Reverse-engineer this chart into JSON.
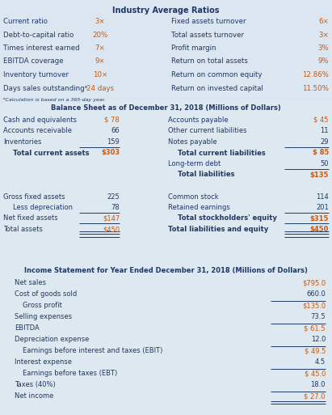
{
  "bg_color": "#dce6f1",
  "bs_bg": "#e8f0f7",
  "is_bg": "#e8f0f7",
  "text_color": "#1f3864",
  "value_color": "#c55a11",
  "fig_width": 4.11,
  "fig_height": 5.13,
  "ratios_title": "Industry Average Ratios",
  "ratios": [
    [
      "Current ratio",
      "3×",
      "Fixed assets turnover",
      "6×"
    ],
    [
      "Debt-to-capital ratio",
      "20%",
      "Total assets turnover",
      "3×"
    ],
    [
      "Times interest earned",
      "7×",
      "Profit margin",
      "3%"
    ],
    [
      "EBITDA coverage",
      "9×",
      "Return on total assets",
      "9%"
    ],
    [
      "Inventory turnover",
      "10×",
      "Return on common equity",
      "12.86%"
    ],
    [
      "Days sales outstandingᵃ",
      "24 days",
      "Return on invested capital",
      "11.50%"
    ]
  ],
  "ratios_footnote": "ᵃCalculation is based on a 365-day year.",
  "bs_title": "Balance Sheet as of December 31, 2018 (Millions of Dollars)",
  "bs_left": [
    {
      "label": "Cash and equivalents",
      "val": "$ 78",
      "underline": false,
      "bold": false,
      "indent": false
    },
    {
      "label": "Accounts receivable",
      "val": "66",
      "underline": false,
      "bold": false,
      "indent": false
    },
    {
      "label": "Inventories",
      "val": "159",
      "underline": true,
      "bold": false,
      "indent": false
    },
    {
      "label": "Total current assets",
      "val": "$303",
      "underline": false,
      "bold": true,
      "indent": true
    },
    {
      "label": "",
      "val": "",
      "underline": false,
      "bold": false,
      "indent": false
    },
    {
      "label": "",
      "val": "",
      "underline": false,
      "bold": false,
      "indent": false
    },
    {
      "label": "",
      "val": "",
      "underline": false,
      "bold": false,
      "indent": false
    },
    {
      "label": "Gross fixed assets",
      "val": "225",
      "underline": false,
      "bold": false,
      "indent": false
    },
    {
      "label": "Less depreciation",
      "val": "78",
      "underline": true,
      "bold": false,
      "indent": true
    },
    {
      "label": "Net fixed assets",
      "val": "$147",
      "underline": true,
      "bold": false,
      "indent": false
    },
    {
      "label": "Total assets",
      "val": "$450",
      "underline": false,
      "bold": false,
      "indent": false
    }
  ],
  "bs_right": [
    {
      "label": "Accounts payable",
      "val": "$ 45",
      "underline": false,
      "bold": false,
      "indent": false
    },
    {
      "label": "Other current liabilities",
      "val": "11",
      "underline": false,
      "bold": false,
      "indent": false
    },
    {
      "label": "Notes payable",
      "val": "29",
      "underline": true,
      "bold": false,
      "indent": false
    },
    {
      "label": "Total current liabilities",
      "val": "$ 85",
      "underline": false,
      "bold": true,
      "indent": true
    },
    {
      "label": "Long-term debt",
      "val": "50",
      "underline": true,
      "bold": false,
      "indent": false
    },
    {
      "label": "Total liabilities",
      "val": "$135",
      "underline": false,
      "bold": true,
      "indent": true
    },
    {
      "label": "Common stock",
      "val": "114",
      "underline": false,
      "bold": false,
      "indent": false
    },
    {
      "label": "Retained earnings",
      "val": "201",
      "underline": true,
      "bold": false,
      "indent": false
    },
    {
      "label": "Total stockholders' equity",
      "val": "$315",
      "underline": true,
      "bold": true,
      "indent": true
    },
    {
      "label": "Total liabilities and equity",
      "val": "$450",
      "underline": false,
      "bold": true,
      "indent": false
    }
  ],
  "is_title": "Income Statement for Year Ended December 31, 2018 (Millions of Dollars)",
  "is_rows": [
    {
      "label": "Net sales",
      "val": "$795.0",
      "pre_line": false,
      "post_dline": false,
      "bold": false,
      "indent": false
    },
    {
      "label": "Cost of goods sold",
      "val": "660.0",
      "pre_line": false,
      "post_dline": false,
      "bold": false,
      "indent": false
    },
    {
      "label": "Gross profit",
      "val": "$135.0",
      "pre_line": true,
      "post_dline": false,
      "bold": false,
      "indent": true
    },
    {
      "label": "Selling expenses",
      "val": "73.5",
      "pre_line": false,
      "post_dline": false,
      "bold": false,
      "indent": false
    },
    {
      "label": "EBITDA",
      "val": "$ 61.5",
      "pre_line": true,
      "post_dline": false,
      "bold": false,
      "indent": false
    },
    {
      "label": "Depreciation expense",
      "val": "12.0",
      "pre_line": false,
      "post_dline": false,
      "bold": false,
      "indent": false
    },
    {
      "label": "Earnings before interest and taxes (EBIT)",
      "val": "$ 49.5",
      "pre_line": true,
      "post_dline": false,
      "bold": false,
      "indent": true
    },
    {
      "label": "Interest expense",
      "val": "4.5",
      "pre_line": false,
      "post_dline": false,
      "bold": false,
      "indent": false
    },
    {
      "label": "Earnings before taxes (EBT)",
      "val": "$ 45.0",
      "pre_line": true,
      "post_dline": false,
      "bold": false,
      "indent": true
    },
    {
      "label": "Taxes (40%)",
      "val": "18.0",
      "pre_line": false,
      "post_dline": false,
      "bold": false,
      "indent": false
    },
    {
      "label": "Net income",
      "val": "$ 27.0",
      "pre_line": true,
      "post_dline": true,
      "bold": false,
      "indent": false
    }
  ]
}
